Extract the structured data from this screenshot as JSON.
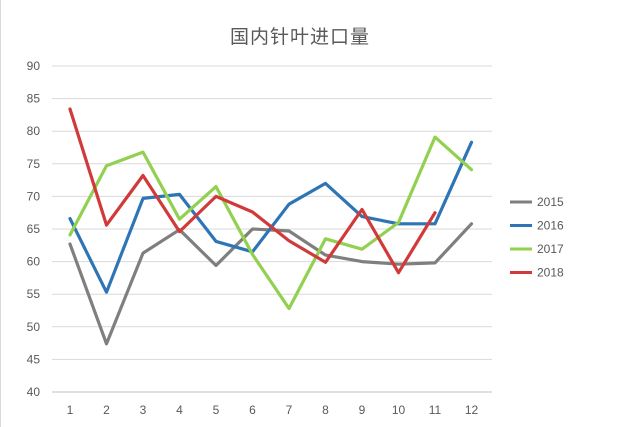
{
  "chart_data": {
    "type": "line",
    "title": "国内针叶进口量",
    "xlabel": "",
    "ylabel": "",
    "x": [
      1,
      2,
      3,
      4,
      5,
      6,
      7,
      8,
      9,
      10,
      11,
      12
    ],
    "x_tick_labels": [
      "1",
      "2",
      "3",
      "4",
      "5",
      "6",
      "7",
      "8",
      "9",
      "10",
      "11",
      "12"
    ],
    "y_tick_labels": [
      "40",
      "45",
      "50",
      "55",
      "60",
      "65",
      "70",
      "75",
      "80",
      "85",
      "90"
    ],
    "ylim": [
      40,
      90
    ],
    "grid": "horizontal",
    "legend_position": "right",
    "series": [
      {
        "name": "2015",
        "color": "#7f7f7f",
        "values": [
          62.7,
          47.4,
          61.3,
          64.9,
          59.4,
          65.0,
          64.7,
          61.0,
          60.0,
          59.6,
          59.8,
          65.8
        ]
      },
      {
        "name": "2016",
        "color": "#2e75b6",
        "values": [
          66.6,
          55.3,
          69.7,
          70.3,
          63.1,
          61.5,
          68.8,
          72.0,
          66.9,
          65.8,
          65.8,
          78.3
        ]
      },
      {
        "name": "2017",
        "color": "#92d050",
        "values": [
          64.1,
          74.7,
          76.8,
          66.5,
          71.5,
          61.1,
          52.8,
          63.5,
          61.9,
          66.0,
          79.1,
          74.1
        ]
      },
      {
        "name": "2018",
        "color": "#d13a3a",
        "values": [
          83.4,
          65.6,
          73.2,
          64.6,
          70.0,
          67.6,
          63.2,
          59.9,
          68.0,
          58.3,
          67.5,
          null
        ]
      }
    ]
  }
}
